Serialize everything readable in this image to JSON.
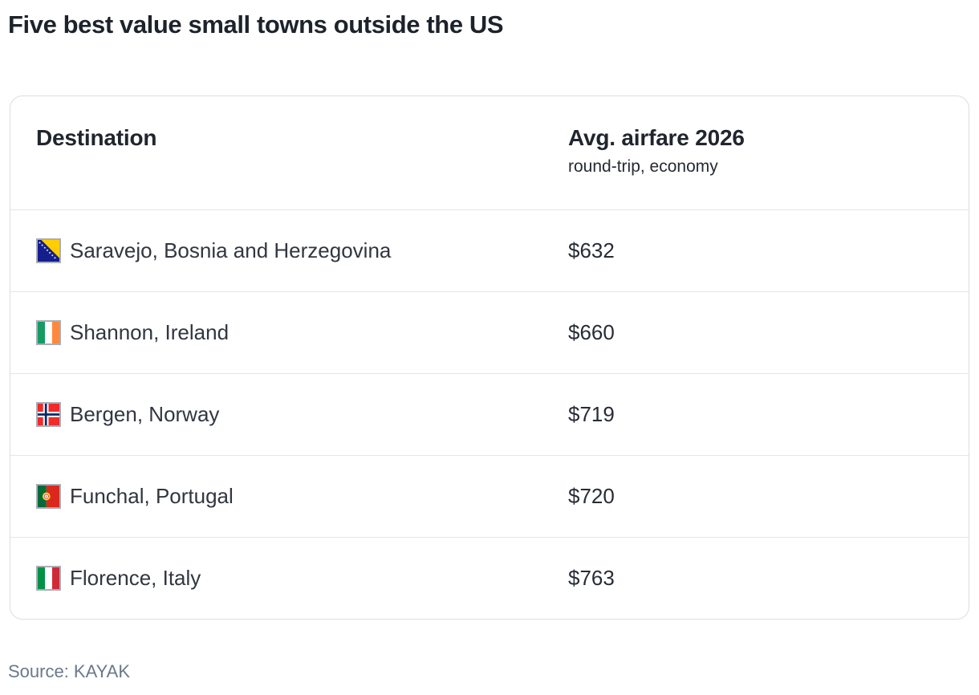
{
  "title": "Five best value small towns outside the US",
  "table": {
    "header": {
      "destination": "Destination",
      "airfare": "Avg. airfare 2026",
      "airfare_subtitle": "round-trip, economy"
    },
    "rows": [
      {
        "flag": "bosnia-and-herzegovina-flag",
        "destination": "Saravejo, Bosnia and Herzegovina",
        "price": "$632"
      },
      {
        "flag": "ireland-flag",
        "destination": "Shannon, Ireland",
        "price": "$660"
      },
      {
        "flag": "norway-flag",
        "destination": "Bergen, Norway",
        "price": "$719"
      },
      {
        "flag": "portugal-flag",
        "destination": "Funchal, Portugal",
        "price": "$720"
      },
      {
        "flag": "italy-flag",
        "destination": "Florence, Italy",
        "price": "$763"
      }
    ]
  },
  "source": "Source: KAYAK",
  "colors": {
    "title_text": "#1d232c",
    "header_text": "#20252e",
    "body_text": "#31363f",
    "price_text": "#272c35",
    "card_border": "#dcdde0",
    "row_divider": "#e5e6e8",
    "source_text": "#6b7989",
    "flag_border": "#a9aeb6"
  },
  "chart_data": {
    "type": "table",
    "title": "Five best value small towns outside the US",
    "columns": [
      "Destination",
      "Avg. airfare 2026 (round-trip, economy)"
    ],
    "rows": [
      [
        "Saravejo, Bosnia and Herzegovina",
        632
      ],
      [
        "Shannon, Ireland",
        660
      ],
      [
        "Bergen, Norway",
        719
      ],
      [
        "Funchal, Portugal",
        720
      ],
      [
        "Florence, Italy",
        763
      ]
    ],
    "value_unit": "USD",
    "source": "KAYAK"
  }
}
